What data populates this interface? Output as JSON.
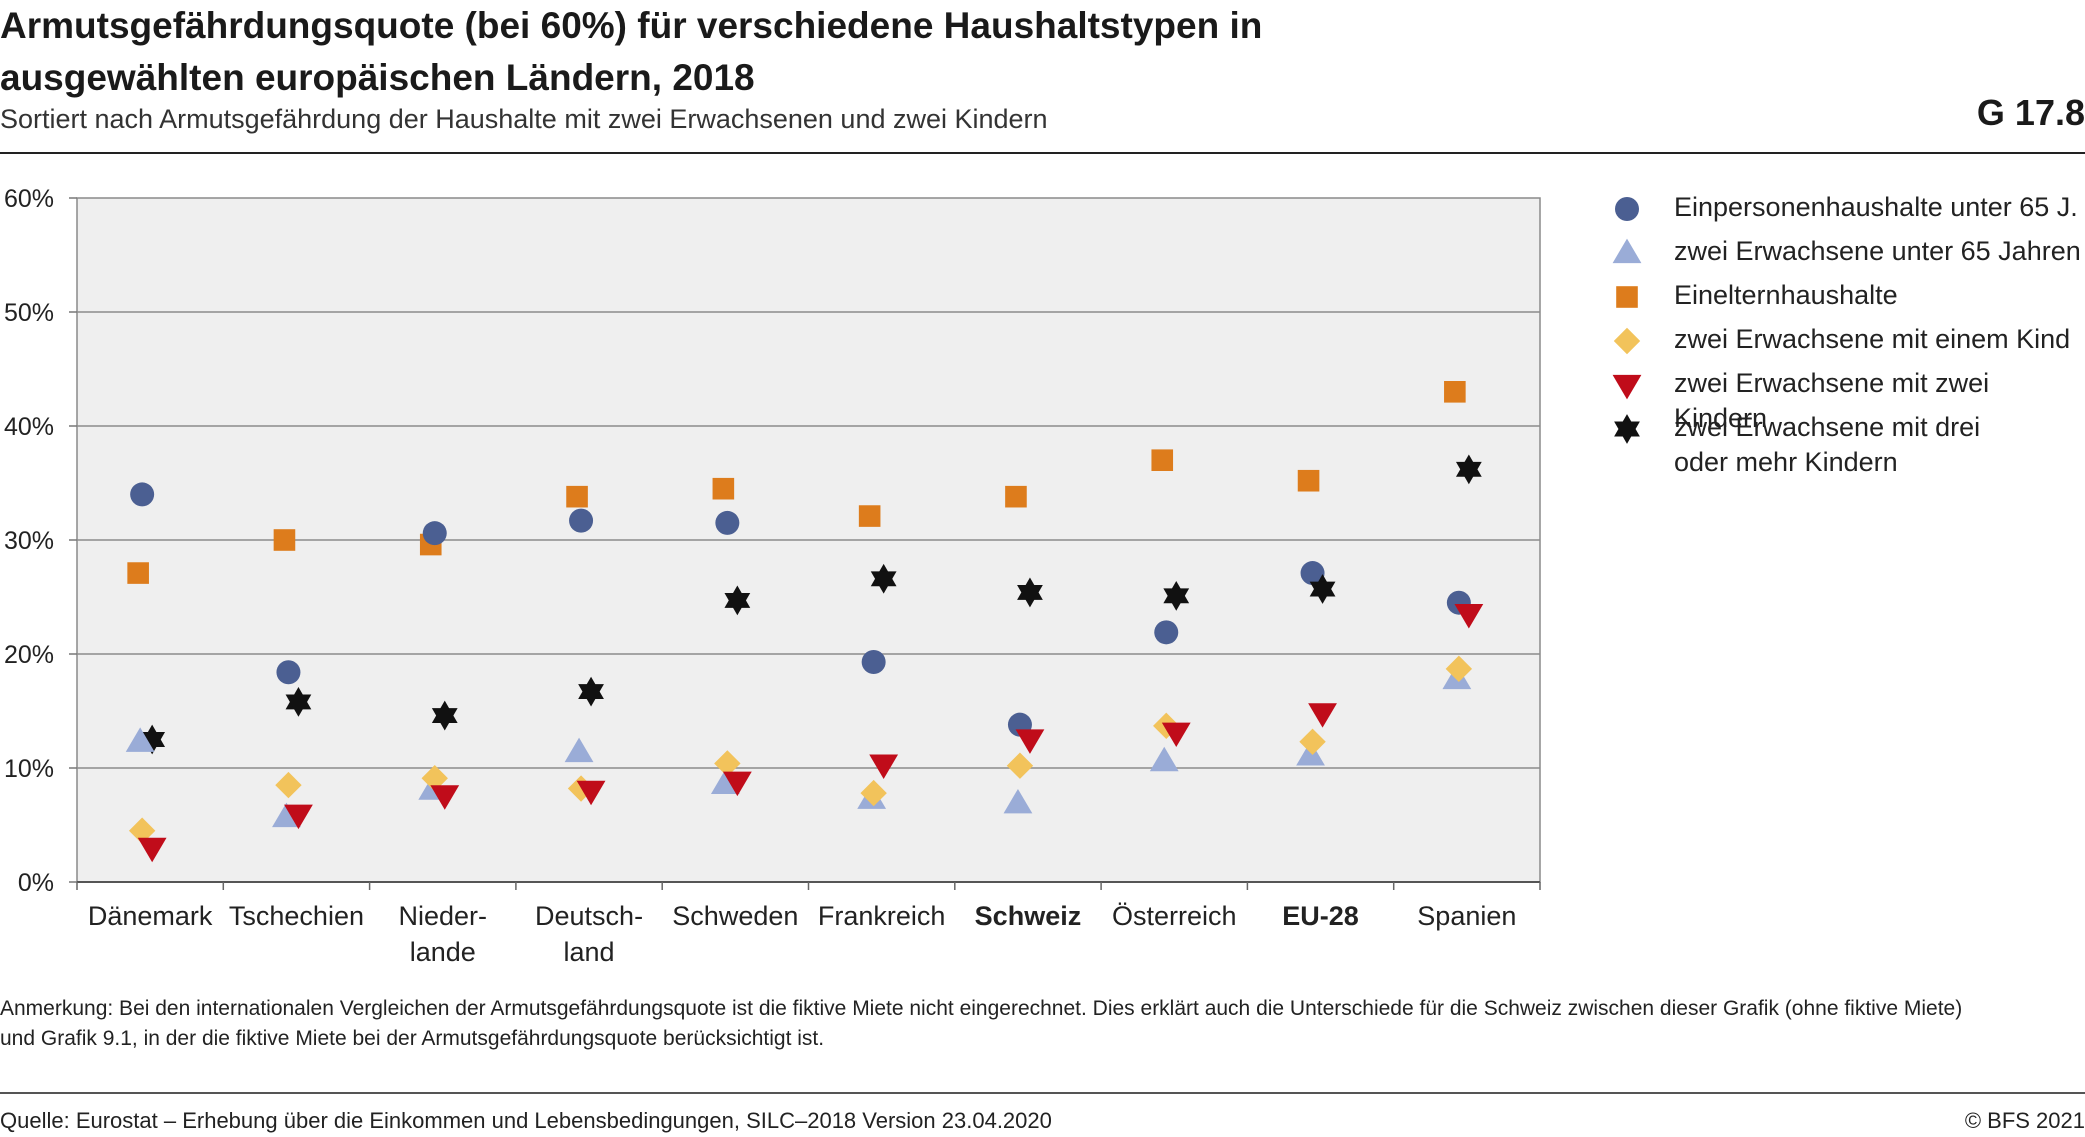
{
  "header": {
    "title": "Armutsgefährdungsquote (bei 60%) für verschiedene Haushaltstypen in ausgewählten europäischen Ländern, 2018",
    "subtitle": "Sortiert nach Armutsgefährdung der Haushalte mit zwei Erwachsenen und zwei Kindern",
    "code": "G 17.8"
  },
  "footer": {
    "note": "Anmerkung: Bei den internationalen Vergleichen der Armutsgefährdungsquote ist die fiktive Miete nicht eingerechnet. Dies erklärt auch die Unterschiede für die Schweiz zwischen dieser Grafik (ohne fiktive Miete) und Grafik 9.1, in der die fiktive Miete bei der Armutsgefährdungsquote berücksichtigt ist.",
    "source": "Quelle: Eurostat – Erhebung über die Einkommen und Lebensbedingungen, SILC–2018 Version 23.04.2020",
    "copyright": "© BFS 2021"
  },
  "chart_data": {
    "type": "scatter",
    "title": "Armutsgefährdungsquote (bei 60%) für verschiedene Haushaltstypen in ausgewählten europäischen Ländern, 2018",
    "subtitle": "Sortiert nach Armutsgefährdung der Haushalte mit zwei Erwachsenen und zwei Kindern",
    "categories": [
      "Dänemark",
      "Tschechien",
      "Nieder-\nlande",
      "Deutsch-\nland",
      "Schweden",
      "Frankreich",
      "Schweiz",
      "Österreich",
      "EU-28",
      "Spanien"
    ],
    "bold_categories": [
      "Schweiz",
      "EU-28"
    ],
    "ylim": [
      0,
      60
    ],
    "yticks": [
      0,
      10,
      20,
      30,
      40,
      50,
      60
    ],
    "ytick_labels": [
      "0%",
      "10%",
      "20%",
      "30%",
      "40%",
      "50%",
      "60%"
    ],
    "grid": true,
    "legend_position": "right",
    "series": [
      {
        "name": "Einpersonenhaushalte unter 65 J.",
        "marker": "circle",
        "color": "#4b5f92",
        "values": [
          34.0,
          18.4,
          30.6,
          31.7,
          31.5,
          19.3,
          13.8,
          21.9,
          27.1,
          24.5
        ]
      },
      {
        "name": "zwei Erwachsene unter 65 Jahren",
        "marker": "triangle-up",
        "color": "#9aacd7",
        "values": [
          12.3,
          5.7,
          8.1,
          11.4,
          8.6,
          7.3,
          6.9,
          10.6,
          11.1,
          17.8
        ]
      },
      {
        "name": "Einelternhaushalte",
        "marker": "square",
        "color": "#dd7c1c",
        "values": [
          27.1,
          30.0,
          29.6,
          33.8,
          34.5,
          32.1,
          33.8,
          37.0,
          35.2,
          43.0
        ]
      },
      {
        "name": "zwei Erwachsene mit einem Kind",
        "marker": "diamond",
        "color": "#f2c35b",
        "values": [
          4.5,
          8.5,
          9.1,
          8.2,
          10.4,
          7.8,
          10.2,
          13.7,
          12.3,
          18.7
        ]
      },
      {
        "name": "zwei Erwachsene mit zwei Kindern",
        "marker": "triangle-down",
        "color": "#c00c1a",
        "values": [
          3.0,
          5.9,
          7.6,
          8.0,
          8.8,
          10.3,
          12.5,
          13.1,
          14.8,
          23.5
        ]
      },
      {
        "name": "zwei Erwachsene mit drei\noder mehr Kindern",
        "marker": "star6",
        "color": "#111111",
        "values": [
          12.5,
          15.8,
          14.6,
          16.7,
          24.7,
          26.6,
          25.4,
          25.1,
          25.7,
          36.2
        ]
      }
    ]
  }
}
